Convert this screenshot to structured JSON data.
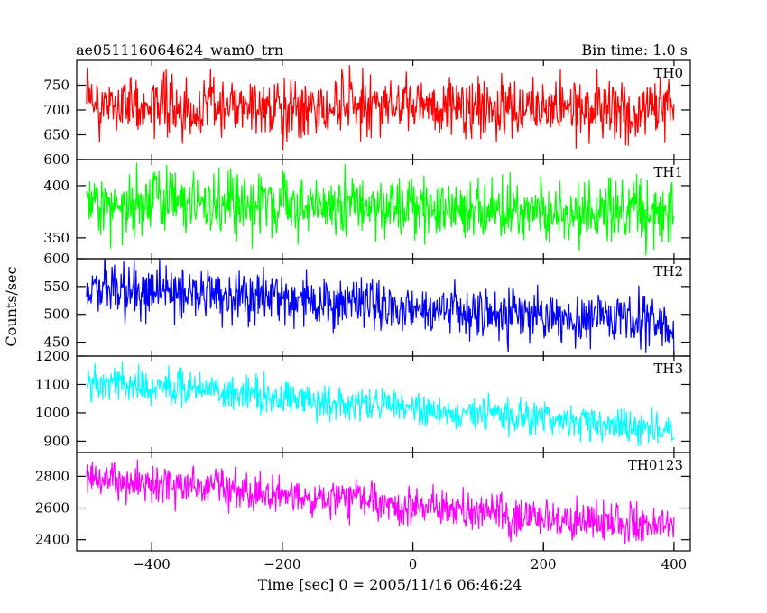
{
  "header": {
    "title": "ae051116064624_wam0_trn",
    "bin_time": "Bin time: 1.0 s"
  },
  "chart_data": {
    "type": "line",
    "xlabel": "Time [sec] 0 = 2005/11/16 06:46:24",
    "ylabel": "Counts/sec",
    "xlim": [
      -515,
      425
    ],
    "x_ticks": [
      -400,
      -200,
      0,
      200,
      400
    ],
    "x_tick_labels": [
      "−400",
      "−200",
      "0",
      "200",
      "400"
    ],
    "x_start": -500,
    "x_end": 400,
    "x_step": 1,
    "panels": [
      {
        "label": "TH0",
        "color": "#ff0000",
        "ylim": [
          600,
          800
        ],
        "y_ticks": [
          600,
          650,
          700,
          750
        ],
        "y_tick_labels": [
          "600",
          "650",
          "700",
          "750"
        ],
        "level_start": 712,
        "level_end": 698,
        "noise": 30
      },
      {
        "label": "TH1",
        "color": "#00ff00",
        "ylim": [
          330,
          425
        ],
        "y_ticks": [
          350,
          400
        ],
        "y_tick_labels": [
          "350",
          "400"
        ],
        "level_start": 385,
        "level_end": 372,
        "noise": 15
      },
      {
        "label": "TH2",
        "color": "#0000ff",
        "ylim": [
          425,
          600
        ],
        "y_ticks": [
          450,
          500,
          550,
          600
        ],
        "y_tick_labels": [
          "450",
          "500",
          "550",
          "600"
        ],
        "level_start": 548,
        "level_end": 482,
        "noise": 24
      },
      {
        "label": "TH3",
        "color": "#00ffff",
        "ylim": [
          860,
          1200
        ],
        "y_ticks": [
          900,
          1000,
          1100,
          1200
        ],
        "y_tick_labels": [
          "900",
          "1000",
          "1100",
          "1200"
        ],
        "level_start": 1110,
        "level_end": 940,
        "noise": 32
      },
      {
        "label": "TH0123",
        "color": "#ff00ff",
        "ylim": [
          2330,
          2950
        ],
        "y_ticks": [
          2400,
          2600,
          2800
        ],
        "y_tick_labels": [
          "2400",
          "2600",
          "2800"
        ],
        "level_start": 2790,
        "level_end": 2475,
        "noise": 62
      }
    ]
  }
}
